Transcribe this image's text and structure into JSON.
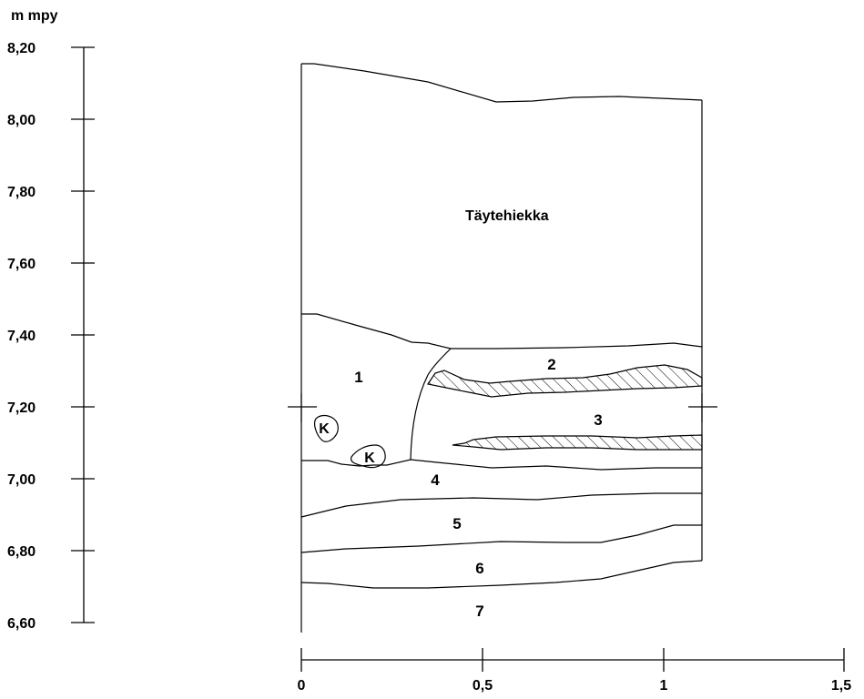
{
  "vertical_axis": {
    "unit_label": "m mpy",
    "ticks": [
      "8,20",
      "8,00",
      "7,80",
      "7,60",
      "7,40",
      "7,20",
      "7,00",
      "6,80",
      "6,60"
    ]
  },
  "horizontal_axis": {
    "ticks": [
      "0",
      "0,5",
      "1",
      "1,5"
    ]
  },
  "fill_label": "Täytehiekka",
  "layers": [
    "1",
    "2",
    "3",
    "4",
    "5",
    "6",
    "7"
  ],
  "stone_markers": [
    "K",
    "K"
  ]
}
